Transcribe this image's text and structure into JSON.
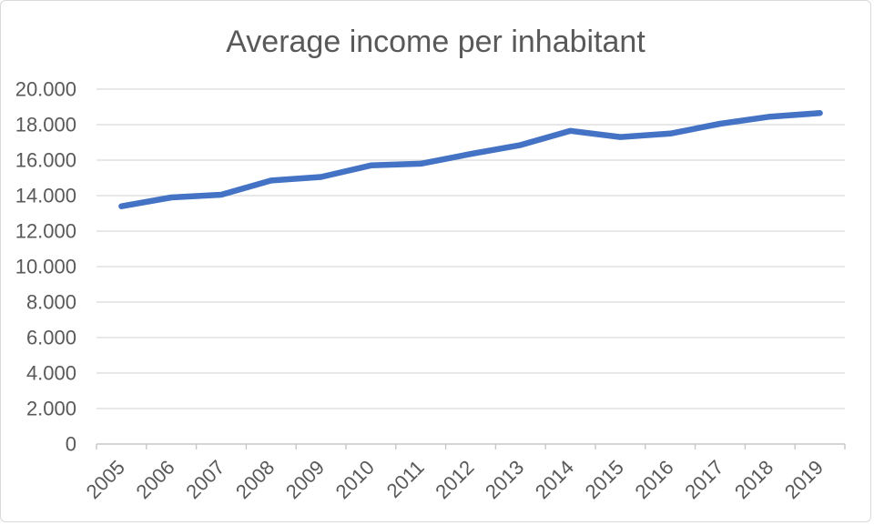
{
  "chart": {
    "colors": {
      "line": "#4472C4",
      "gridline": "#D9D9D9",
      "axis": "#C8C6C6",
      "text": "#595959",
      "border": "#D9D9D9",
      "background": "#FFFFFF"
    }
  },
  "chart_data": {
    "type": "line",
    "title": "Average income per inhabitant",
    "categories": [
      "2005",
      "2006",
      "2007",
      "2008",
      "2009",
      "2010",
      "2011",
      "2012",
      "2013",
      "2014",
      "2015",
      "2016",
      "2017",
      "2018",
      "2019"
    ],
    "series": [
      {
        "name": "Average income per inhabitant",
        "values": [
          13400,
          13900,
          14050,
          14850,
          15050,
          15700,
          15800,
          16350,
          16850,
          17650,
          17300,
          17500,
          18050,
          18450,
          18650
        ]
      }
    ],
    "xlabel": "",
    "ylabel": "",
    "ylim": [
      0,
      20000
    ],
    "y_tick_interval": 2000,
    "y_tick_labels": [
      "0",
      "2.000",
      "4.000",
      "6.000",
      "8.000",
      "10.000",
      "12.000",
      "14.000",
      "16.000",
      "18.000",
      "20.000"
    ],
    "x_label_rotation": -45,
    "grid": true,
    "legend": false
  }
}
